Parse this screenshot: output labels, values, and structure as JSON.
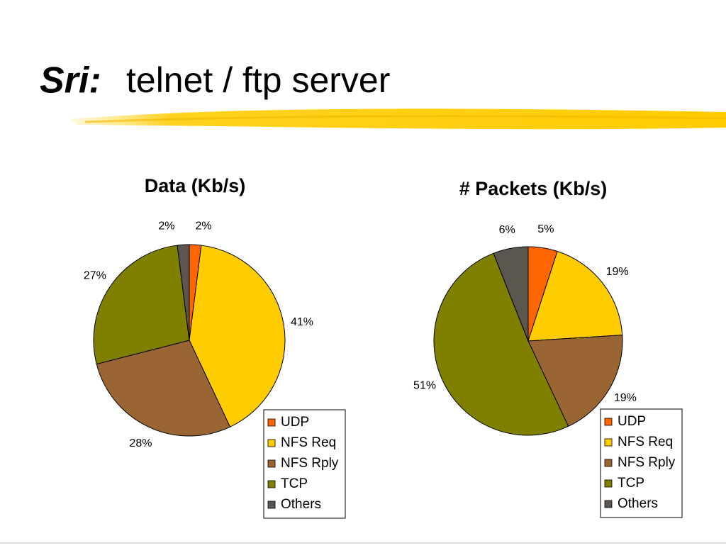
{
  "header": {
    "title_bold": "Sri:",
    "title_rest": "telnet / ftp server"
  },
  "chart_data": [
    {
      "type": "pie",
      "title": "Data (Kb/s)",
      "categories": [
        "UDP",
        "NFS Req",
        "NFS Rply",
        "TCP",
        "Others"
      ],
      "values": [
        2,
        41,
        28,
        27,
        2
      ],
      "value_labels": [
        "2%",
        "41%",
        "28%",
        "27%",
        "2%"
      ],
      "colors": [
        "#ff6600",
        "#ffcc00",
        "#996633",
        "#808000",
        "#5c5650"
      ]
    },
    {
      "type": "pie",
      "title": "# Packets (Kb/s)",
      "categories": [
        "UDP",
        "NFS Req",
        "NFS Rply",
        "TCP",
        "Others"
      ],
      "values": [
        5,
        19,
        19,
        51,
        6
      ],
      "value_labels": [
        "5%",
        "19%",
        "19%",
        "51%",
        "6%"
      ],
      "colors": [
        "#ff6600",
        "#ffcc00",
        "#996633",
        "#808000",
        "#5c5650"
      ]
    }
  ]
}
